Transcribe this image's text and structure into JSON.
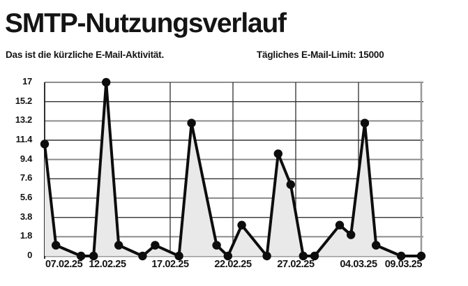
{
  "header": {
    "title": "SMTP-Nutzungsverlauf",
    "subtitle": "Das ist die kürzliche E-Mail-Aktivität.",
    "limit_label": "Tägliches E-Mail-Limit: 15000",
    "daily_limit": 15000
  },
  "chart_data": {
    "type": "area",
    "title": "SMTP-Nutzungsverlauf",
    "xlabel": "",
    "ylabel": "",
    "grid": true,
    "legend_position": "none",
    "x_tick_labels": [
      "07.02.25",
      "12.02.25",
      "17.02.25",
      "22.02.25",
      "27.02.25",
      "04.03.25",
      "09.03.25"
    ],
    "x_tick_days": [
      0,
      5,
      10,
      15,
      20,
      25,
      30
    ],
    "x_range_days": [
      0,
      30
    ],
    "y_tick_labels": [
      "0",
      "1.8",
      "3.8",
      "5.6",
      "7.6",
      "9.4",
      "11.4",
      "13.2",
      "15.2",
      "17"
    ],
    "y_tick_values": [
      0,
      1.8,
      3.8,
      5.6,
      7.6,
      9.4,
      11.4,
      13.2,
      15.2,
      17
    ],
    "points": [
      {
        "day": 0,
        "value": 11
      },
      {
        "day": 0.9,
        "value": 1
      },
      {
        "day": 2.9,
        "value": 0
      },
      {
        "day": 3.9,
        "value": 0
      },
      {
        "day": 4.9,
        "value": 17
      },
      {
        "day": 5.9,
        "value": 1
      },
      {
        "day": 7.8,
        "value": 0
      },
      {
        "day": 8.8,
        "value": 1
      },
      {
        "day": 10.7,
        "value": 0
      },
      {
        "day": 11.7,
        "value": 13
      },
      {
        "day": 13.7,
        "value": 1
      },
      {
        "day": 14.6,
        "value": 0
      },
      {
        "day": 15.7,
        "value": 3
      },
      {
        "day": 17.7,
        "value": 0
      },
      {
        "day": 18.6,
        "value": 10
      },
      {
        "day": 19.6,
        "value": 7
      },
      {
        "day": 20.6,
        "value": 0
      },
      {
        "day": 21.5,
        "value": 0
      },
      {
        "day": 23.5,
        "value": 3
      },
      {
        "day": 24.4,
        "value": 2
      },
      {
        "day": 25.5,
        "value": 13
      },
      {
        "day": 26.4,
        "value": 1
      },
      {
        "day": 28.4,
        "value": 0
      },
      {
        "day": 30,
        "value": 0
      }
    ],
    "styles": {
      "line_color": "#0d0d0d",
      "dot_color": "#0d0d0d",
      "fill_color": "#e9e9e9",
      "grid_major_color": "#8c8c8c",
      "grid_minor_color": "#333333",
      "axis_color": "#999999",
      "left_axis_color": "#1a1a1a",
      "vline_color": "#2e2e2e",
      "text_color": "#141414",
      "background": "#ffffff"
    }
  }
}
